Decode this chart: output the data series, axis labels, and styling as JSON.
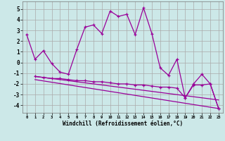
{
  "xlabel": "Windchill (Refroidissement éolien,°C)",
  "background_color": "#cce8e8",
  "line_color": "#990099",
  "grid_color": "#aaaaaa",
  "xlim": [
    -0.5,
    23.5
  ],
  "ylim": [
    -4.7,
    5.7
  ],
  "yticks": [
    -4,
    -3,
    -2,
    -1,
    0,
    1,
    2,
    3,
    4,
    5
  ],
  "xticks": [
    0,
    1,
    2,
    3,
    4,
    5,
    6,
    7,
    8,
    9,
    10,
    11,
    12,
    13,
    14,
    15,
    16,
    17,
    18,
    19,
    20,
    21,
    22,
    23
  ],
  "series1_x": [
    0,
    1,
    2,
    3,
    4,
    5,
    6,
    7,
    8,
    9,
    10,
    11,
    12,
    13,
    14,
    15,
    16,
    17,
    18,
    19,
    20,
    21,
    22,
    23
  ],
  "series1_y": [
    2.6,
    0.3,
    1.1,
    -0.1,
    -0.9,
    -1.1,
    1.2,
    3.3,
    3.5,
    2.7,
    4.8,
    4.3,
    4.5,
    2.6,
    5.1,
    2.7,
    -0.5,
    -1.2,
    0.3,
    -3.3,
    -2.0,
    -1.1,
    -2.0,
    -4.3
  ],
  "series2_x": [
    1,
    2,
    3,
    4,
    5,
    6,
    7,
    8,
    9,
    10,
    11,
    12,
    13,
    14,
    15,
    16,
    17,
    18,
    19,
    20,
    21,
    22,
    23
  ],
  "series2_y": [
    -1.3,
    -1.4,
    -1.5,
    -1.5,
    -1.6,
    -1.7,
    -1.7,
    -1.8,
    -1.8,
    -1.9,
    -2.0,
    -2.0,
    -2.1,
    -2.1,
    -2.2,
    -2.3,
    -2.3,
    -2.4,
    -3.3,
    -2.1,
    -2.1,
    -2.0,
    -4.3
  ],
  "series3_x": [
    1,
    23
  ],
  "series3_y": [
    -1.3,
    -3.5
  ],
  "series4_x": [
    1,
    23
  ],
  "series4_y": [
    -1.6,
    -4.3
  ]
}
